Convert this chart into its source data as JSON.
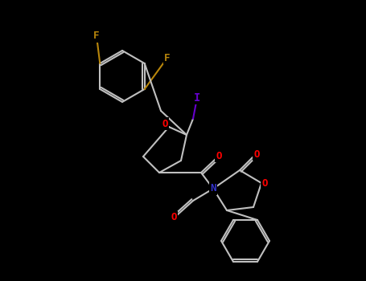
{
  "background": "#000000",
  "bond_color": "#C0C0C0",
  "bond_width": 1.5,
  "atom_colors": {
    "F": "#B8860B",
    "I": "#6600CC",
    "O": "#FF0000",
    "N": "#3333CC",
    "C": "#C0C0C0"
  },
  "figsize": [
    4.55,
    3.5
  ],
  "dpi": 100
}
